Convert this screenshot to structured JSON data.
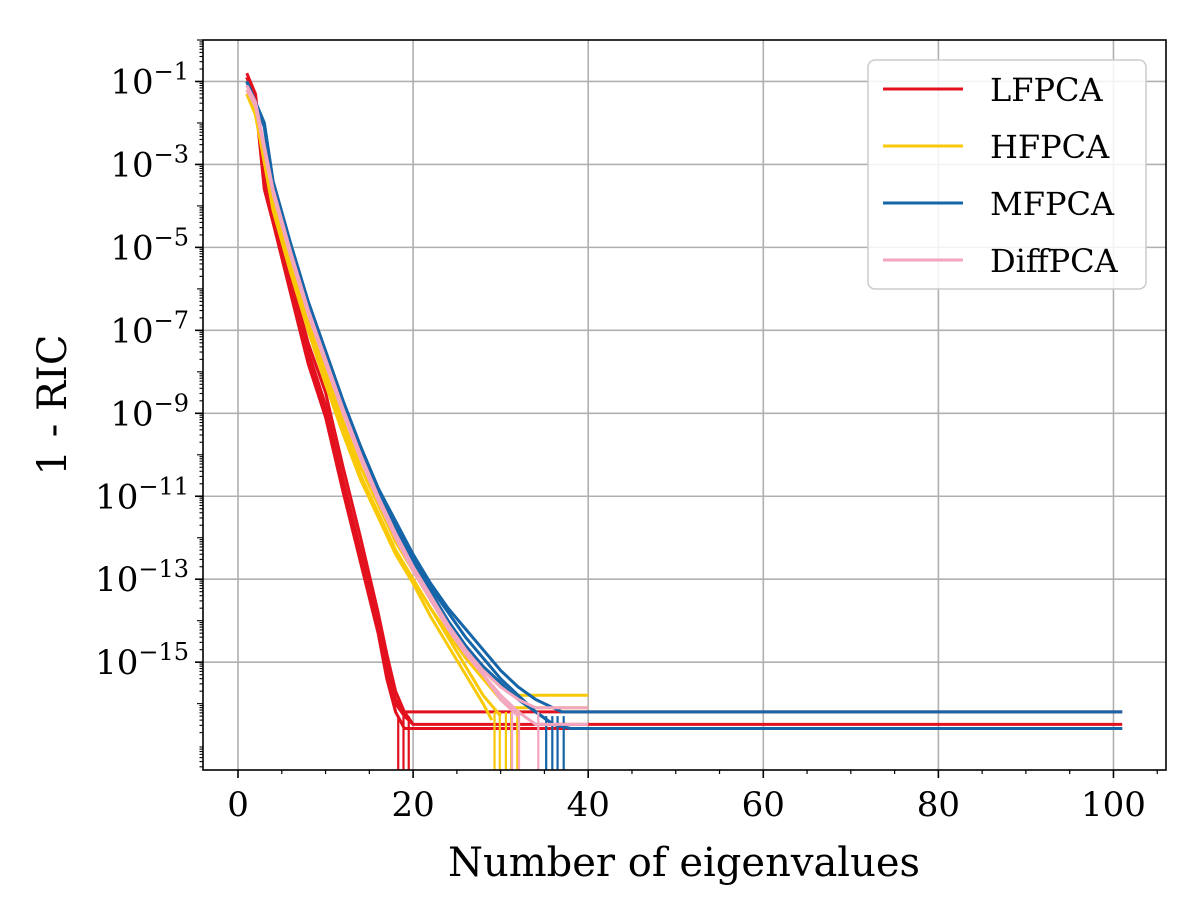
{
  "chart_data": {
    "type": "line",
    "xlabel": "Number of eigenvalues",
    "ylabel": "1 - RIC",
    "yscale": "log",
    "xlim": [
      -4,
      106
    ],
    "ylim_log10": [
      -17.6,
      0
    ],
    "grid": true,
    "legend_position": "top-right",
    "x_ticks": [
      {
        "value": 0,
        "label": "0"
      },
      {
        "value": 20,
        "label": "20"
      },
      {
        "value": 40,
        "label": "40"
      },
      {
        "value": 60,
        "label": "60"
      },
      {
        "value": 80,
        "label": "80"
      },
      {
        "value": 100,
        "label": "100"
      }
    ],
    "y_ticks": [
      {
        "exp": -1,
        "base": "10",
        "sup": "−1"
      },
      {
        "exp": -3,
        "base": "10",
        "sup": "−3"
      },
      {
        "exp": -5,
        "base": "10",
        "sup": "−5"
      },
      {
        "exp": -7,
        "base": "10",
        "sup": "−7"
      },
      {
        "exp": -9,
        "base": "10",
        "sup": "−9"
      },
      {
        "exp": -11,
        "base": "10",
        "sup": "−11"
      },
      {
        "exp": -13,
        "base": "10",
        "sup": "−13"
      },
      {
        "exp": -15,
        "base": "10",
        "sup": "−15"
      }
    ],
    "series": [
      {
        "name": "LFPCA",
        "color": "#e3101e",
        "runs": [
          {
            "x": [
              1,
              2,
              3,
              4,
              6,
              8,
              10,
              12,
              14,
              16,
              17,
              18,
              19,
              20,
              101
            ],
            "log10y": [
              -0.9,
              -1.4,
              -3.4,
              -4.2,
              -5.9,
              -7.5,
              -8.8,
              -10.6,
              -12.3,
              -14.0,
              -15.1,
              -15.9,
              -16.2,
              -16.2,
              -16.2
            ]
          },
          {
            "x": [
              1,
              2,
              3,
              4,
              6,
              8,
              10,
              12,
              14,
              16,
              17,
              18,
              19,
              20,
              101
            ],
            "log10y": [
              -0.8,
              -1.3,
              -3.2,
              -4.0,
              -5.7,
              -7.3,
              -8.5,
              -10.3,
              -12.0,
              -13.8,
              -14.8,
              -15.7,
              -16.2,
              -16.5,
              -16.5
            ]
          },
          {
            "x": [
              1,
              2,
              3,
              4,
              6,
              8,
              10,
              12,
              14,
              16,
              17,
              18,
              19,
              101
            ],
            "log10y": [
              -1.0,
              -1.5,
              -3.6,
              -4.4,
              -6.1,
              -7.8,
              -9.1,
              -10.9,
              -12.6,
              -14.3,
              -15.4,
              -16.2,
              -16.6,
              -16.6
            ]
          },
          {
            "x": [
              1,
              2,
              3,
              4,
              6,
              8,
              10,
              12,
              14,
              16,
              17,
              18,
              19,
              20
            ],
            "log10y": [
              -0.9,
              -1.4,
              -3.4,
              -4.2,
              -5.9,
              -7.6,
              -8.9,
              -10.7,
              -12.4,
              -14.1,
              -15.2,
              -16.0,
              -16.3,
              -16.5
            ]
          },
          {
            "x": [
              1,
              2,
              3,
              4,
              6,
              8,
              10,
              12,
              14,
              16,
              17,
              18
            ],
            "log10y": [
              -0.9,
              -1.4,
              -3.5,
              -4.3,
              -6.0,
              -7.7,
              -9.0,
              -10.8,
              -12.5,
              -14.2,
              -15.3,
              -16.2
            ]
          }
        ],
        "drops": [
          18.3,
          18.9,
          19.5
        ]
      },
      {
        "name": "HFPCA",
        "color": "#f9c908",
        "runs": [
          {
            "x": [
              1,
              2,
              4,
              6,
              8,
              10,
              12,
              14,
              16,
              18,
              20,
              22,
              24,
              26,
              28,
              30,
              31,
              40
            ],
            "log10y": [
              -1.3,
              -1.8,
              -4.0,
              -5.5,
              -6.9,
              -8.2,
              -9.4,
              -10.5,
              -11.4,
              -12.3,
              -13.0,
              -13.7,
              -14.3,
              -14.9,
              -15.4,
              -15.9,
              -16.1,
              -16.1
            ]
          },
          {
            "x": [
              1,
              2,
              4,
              6,
              8,
              10,
              12,
              14,
              16,
              18,
              20,
              22,
              24,
              26,
              28,
              30,
              32,
              40
            ],
            "log10y": [
              -1.2,
              -1.7,
              -3.8,
              -5.3,
              -6.7,
              -8.0,
              -9.2,
              -10.3,
              -11.2,
              -12.1,
              -12.8,
              -13.5,
              -14.1,
              -14.7,
              -15.2,
              -15.6,
              -15.8,
              -15.8
            ]
          },
          {
            "x": [
              1,
              2,
              4,
              6,
              8,
              10,
              12,
              14,
              16,
              18,
              20,
              22,
              24,
              26,
              28,
              29
            ],
            "log10y": [
              -1.3,
              -1.8,
              -4.1,
              -5.6,
              -7.0,
              -8.3,
              -9.5,
              -10.6,
              -11.5,
              -12.4,
              -13.1,
              -13.9,
              -14.6,
              -15.3,
              -16.0,
              -16.4
            ]
          },
          {
            "x": [
              1,
              2,
              4,
              6,
              8,
              10,
              12,
              14,
              16,
              18,
              20,
              22,
              24,
              26,
              28,
              30
            ],
            "log10y": [
              -1.3,
              -1.8,
              -4.0,
              -5.5,
              -6.9,
              -8.2,
              -9.4,
              -10.5,
              -11.4,
              -12.3,
              -13.0,
              -13.7,
              -14.4,
              -15.1,
              -15.8,
              -16.3
            ]
          }
        ],
        "drops": [
          29.3,
          29.9,
          30.6,
          31.2,
          31.9
        ]
      },
      {
        "name": "MFPCA",
        "color": "#1565a8",
        "runs": [
          {
            "x": [
              1,
              2,
              3,
              4,
              6,
              8,
              10,
              12,
              14,
              16,
              18,
              20,
              22,
              24,
              26,
              28,
              30,
              32,
              34,
              36,
              37,
              40,
              101
            ],
            "log10y": [
              -1.0,
              -1.5,
              -2.0,
              -3.4,
              -4.9,
              -6.3,
              -7.5,
              -8.7,
              -9.8,
              -10.8,
              -11.6,
              -12.4,
              -13.1,
              -13.7,
              -14.2,
              -14.7,
              -15.2,
              -15.6,
              -15.9,
              -16.1,
              -16.2,
              -16.2,
              -16.2
            ]
          },
          {
            "x": [
              1,
              2,
              3,
              4,
              6,
              8,
              10,
              12,
              14,
              16,
              18,
              20,
              22,
              24,
              26,
              28,
              30,
              32,
              34,
              36,
              38,
              40,
              101
            ],
            "log10y": [
              -1.0,
              -1.5,
              -2.1,
              -3.5,
              -5.0,
              -6.4,
              -7.6,
              -8.8,
              -9.9,
              -10.9,
              -11.8,
              -12.6,
              -13.3,
              -14.0,
              -14.6,
              -15.1,
              -15.5,
              -15.9,
              -16.2,
              -16.5,
              -16.6,
              -16.6,
              -16.6
            ]
          },
          {
            "x": [
              1,
              2,
              3,
              4,
              6,
              8,
              10,
              12,
              14,
              16,
              18,
              20,
              22,
              24,
              26,
              28,
              30,
              32,
              34,
              36
            ],
            "log10y": [
              -1.0,
              -1.5,
              -2.0,
              -3.4,
              -4.9,
              -6.3,
              -7.5,
              -8.7,
              -9.8,
              -10.8,
              -11.7,
              -12.5,
              -13.2,
              -13.8,
              -14.4,
              -14.9,
              -15.4,
              -15.8,
              -16.2,
              -16.5
            ]
          }
        ],
        "drops": [
          35.2,
          35.9,
          36.5,
          37.2
        ]
      },
      {
        "name": "DiffPCA",
        "color": "#f2a6bf",
        "runs": [
          {
            "x": [
              1,
              2,
              4,
              6,
              8,
              10,
              12,
              14,
              16,
              18,
              20,
              22,
              24,
              26,
              28,
              30,
              32,
              34,
              40
            ],
            "log10y": [
              -1.1,
              -1.5,
              -3.6,
              -5.1,
              -6.5,
              -7.7,
              -8.9,
              -10.0,
              -11.0,
              -11.9,
              -12.7,
              -13.4,
              -14.1,
              -14.7,
              -15.2,
              -15.6,
              -15.9,
              -16.1,
              -16.1
            ]
          },
          {
            "x": [
              1,
              2,
              4,
              6,
              8,
              10,
              12,
              14,
              16,
              18,
              20,
              22,
              24,
              26,
              28,
              30,
              32,
              34,
              40
            ],
            "log10y": [
              -1.2,
              -1.6,
              -3.7,
              -5.2,
              -6.6,
              -7.8,
              -9.0,
              -10.1,
              -11.1,
              -12.0,
              -12.8,
              -13.5,
              -14.2,
              -14.8,
              -15.3,
              -15.8,
              -16.2,
              -16.5,
              -16.5
            ]
          },
          {
            "x": [
              1,
              2,
              4,
              6,
              8,
              10,
              12,
              14,
              16,
              18,
              20,
              22,
              24,
              26,
              28,
              30,
              32
            ],
            "log10y": [
              -1.1,
              -1.5,
              -3.6,
              -5.1,
              -6.5,
              -7.7,
              -8.9,
              -10.0,
              -11.0,
              -11.9,
              -12.7,
              -13.4,
              -14.1,
              -14.7,
              -15.3,
              -15.9,
              -16.3
            ]
          }
        ],
        "drops": [
          31.3,
          32.1,
          34.3
        ]
      }
    ]
  }
}
